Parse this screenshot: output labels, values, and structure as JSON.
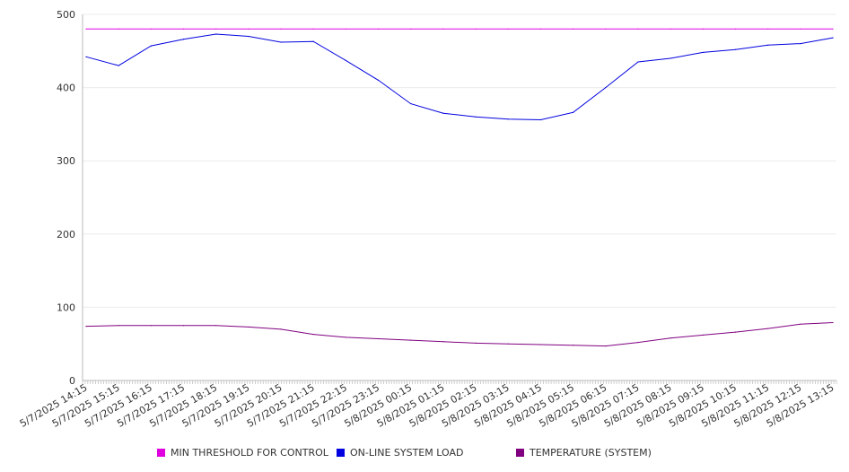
{
  "chart_data": {
    "type": "line",
    "title": "",
    "xlabel": "",
    "ylabel": "",
    "ylim": [
      0,
      500
    ],
    "yticks": [
      0,
      100,
      200,
      300,
      400,
      500
    ],
    "grid": true,
    "legend_position": "bottom",
    "x_tick_labels": [
      "5/7/2025 14:15",
      "5/7/2025 15:15",
      "5/7/2025 16:15",
      "5/7/2025 17:15",
      "5/7/2025 18:15",
      "5/7/2025 19:15",
      "5/7/2025 20:15",
      "5/7/2025 21:15",
      "5/7/2025 22:15",
      "5/7/2025 23:15",
      "5/8/2025 00:15",
      "5/8/2025 01:15",
      "5/8/2025 02:15",
      "5/8/2025 03:15",
      "5/8/2025 04:15",
      "5/8/2025 05:15",
      "5/8/2025 06:15",
      "5/8/2025 07:15",
      "5/8/2025 08:15",
      "5/8/2025 09:15",
      "5/8/2025 10:15",
      "5/8/2025 11:15",
      "5/8/2025 12:15",
      "5/8/2025 13:15"
    ],
    "x": [
      "5/7/2025 14:15",
      "5/7/2025 15:15",
      "5/7/2025 16:15",
      "5/7/2025 17:15",
      "5/7/2025 18:15",
      "5/7/2025 19:15",
      "5/7/2025 20:15",
      "5/7/2025 21:15",
      "5/7/2025 22:15",
      "5/7/2025 23:15",
      "5/8/2025 00:15",
      "5/8/2025 01:15",
      "5/8/2025 02:15",
      "5/8/2025 03:15",
      "5/8/2025 04:15",
      "5/8/2025 05:15",
      "5/8/2025 06:15",
      "5/8/2025 07:15",
      "5/8/2025 08:15",
      "5/8/2025 09:15",
      "5/8/2025 10:15",
      "5/8/2025 11:15",
      "5/8/2025 12:15",
      "5/8/2025 13:15"
    ],
    "series": [
      {
        "name": "MIN THRESHOLD FOR CONTROL",
        "color": "#e000e0",
        "values": [
          480,
          480,
          480,
          480,
          480,
          480,
          480,
          480,
          480,
          480,
          480,
          480,
          480,
          480,
          480,
          480,
          480,
          480,
          480,
          480,
          480,
          480,
          480,
          480
        ]
      },
      {
        "name": "ON-LINE SYSTEM LOAD",
        "color": "#0000e0",
        "values": [
          442,
          430,
          457,
          466,
          473,
          470,
          462,
          463,
          437,
          410,
          378,
          365,
          360,
          357,
          356,
          366,
          400,
          435,
          440,
          448,
          452,
          458,
          460,
          468
        ]
      },
      {
        "name": "TEMPERATURE (SYSTEM)",
        "color": "#800080",
        "values": [
          74,
          75,
          75,
          75,
          75,
          73,
          70,
          63,
          59,
          57,
          55,
          53,
          51,
          50,
          49,
          48,
          47,
          52,
          58,
          62,
          66,
          71,
          77,
          79
        ]
      }
    ]
  }
}
